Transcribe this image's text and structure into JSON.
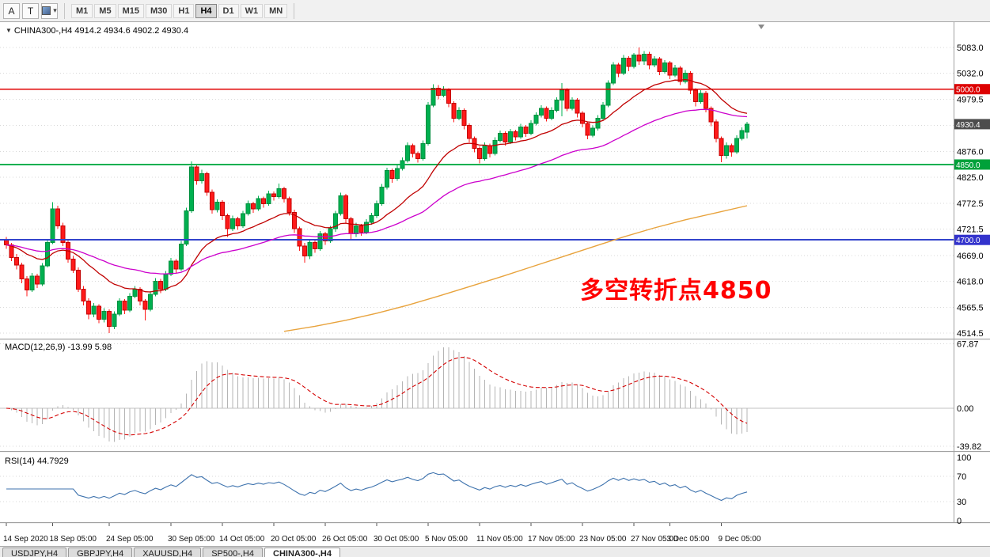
{
  "toolbar": {
    "left_buttons": [
      {
        "id": "annotations-tool",
        "label": "A"
      },
      {
        "id": "text-tool",
        "label": "T"
      }
    ],
    "timeframes": [
      "M1",
      "M5",
      "M15",
      "M30",
      "H1",
      "H4",
      "D1",
      "W1",
      "MN"
    ],
    "active_timeframe": "H4"
  },
  "chart": {
    "title": "CHINA300-,H4 4914.2 4934.6 4902.2 4930.4",
    "annotation_text": "多空转折点4850",
    "annotation_color": "#ff0000"
  },
  "macd_panel": {
    "label": "MACD(12,26,9) -13.99 5.98",
    "scale_labels": [
      {
        "v": 67.87,
        "label": "67.87"
      },
      {
        "v": 0,
        "label": "0.00"
      },
      {
        "v": -39.82,
        "label": "-39.82"
      }
    ]
  },
  "rsi_panel": {
    "label": "RSI(14) 44.7929",
    "scale_labels": [
      {
        "v": 100,
        "label": "100"
      },
      {
        "v": 70,
        "label": "70"
      },
      {
        "v": 30,
        "label": "30"
      },
      {
        "v": 0,
        "label": "0"
      }
    ]
  },
  "bottom_tabs": [
    {
      "label": "USDJPY,H4",
      "active": false
    },
    {
      "label": "GBPJPY,H4",
      "active": false
    },
    {
      "label": "XAUUSD,H4",
      "active": false
    },
    {
      "label": "SP500-,H4",
      "active": false
    },
    {
      "label": "CHINA300-,H4",
      "active": true
    }
  ],
  "chart_data": {
    "type": "candlestick",
    "symbol": "CHINA300-",
    "timeframe": "H4",
    "last_ohlc": {
      "open": 4914.2,
      "high": 4934.6,
      "low": 4902.2,
      "close": 4930.4
    },
    "ylim": [
      4514.5,
      5083.0
    ],
    "colors": {
      "up": "#00b050",
      "up_border": "#008f3e",
      "down": "#ff1a1a",
      "down_border": "#c40000"
    },
    "y_ticks": [
      {
        "price": 5083.0,
        "label": "5083.0"
      },
      {
        "price": 5032.0,
        "label": "5032.0"
      },
      {
        "price": 4979.5,
        "label": "4979.5"
      },
      {
        "price": 4927.8,
        "label": ""
      },
      {
        "price": 4876.0,
        "label": "4876.0"
      },
      {
        "price": 4825.0,
        "label": "4825.0"
      },
      {
        "price": 4772.5,
        "label": "4772.5"
      },
      {
        "price": 4721.5,
        "label": "4721.5"
      },
      {
        "price": 4669.0,
        "label": "4669.0"
      },
      {
        "price": 4618.0,
        "label": "4618.0"
      },
      {
        "price": 4565.5,
        "label": "4565.5"
      },
      {
        "price": 4514.5,
        "label": "4514.5"
      }
    ],
    "price_markers": [
      {
        "price": 5000.0,
        "label": "5000.0",
        "color": "#dd0000"
      },
      {
        "price": 4930.4,
        "label": "4930.4",
        "color": "#4d4d4d"
      },
      {
        "price": 4850.0,
        "label": "4850.0",
        "color": "#00a13a"
      },
      {
        "price": 4700.0,
        "label": "4700.0",
        "color": "#3333cc"
      }
    ],
    "level_lines": [
      {
        "price": 5000.0,
        "color": "#e00000",
        "width": 1.2
      },
      {
        "price": 4850.0,
        "color": "#00b050",
        "width": 2
      },
      {
        "price": 4700.0,
        "color": "#3344cc",
        "width": 2
      }
    ],
    "x_labels": [
      {
        "bar": 0,
        "label": "14 Sep 2020"
      },
      {
        "bar": 9,
        "label": "18 Sep 05:00"
      },
      {
        "bar": 20,
        "label": "24 Sep 05:00"
      },
      {
        "bar": 32,
        "label": "30 Sep 05:00"
      },
      {
        "bar": 42,
        "label": "14 Oct 05:00"
      },
      {
        "bar": 52,
        "label": "20 Oct 05:00"
      },
      {
        "bar": 62,
        "label": "26 Oct 05:00"
      },
      {
        "bar": 72,
        "label": "30 Oct 05:00"
      },
      {
        "bar": 82,
        "label": "5 Nov 05:00"
      },
      {
        "bar": 92,
        "label": "11 Nov 05:00"
      },
      {
        "bar": 102,
        "label": "17 Nov 05:00"
      },
      {
        "bar": 112,
        "label": "23 Nov 05:00"
      },
      {
        "bar": 122,
        "label": "27 Nov 05:00"
      },
      {
        "bar": 129,
        "label": "3 Dec 05:00"
      },
      {
        "bar": 139,
        "label": "9 Dec 05:00"
      }
    ],
    "moving_averages": [
      {
        "name": "ma-fast",
        "method": "ema",
        "period": 21,
        "color": "#c00000"
      },
      {
        "name": "ma-slow",
        "method": "ema",
        "period": 55,
        "color": "#cc00cc"
      }
    ],
    "orange_ma_points": [
      [
        54,
        4518
      ],
      [
        60,
        4528
      ],
      [
        66,
        4540
      ],
      [
        72,
        4554
      ],
      [
        78,
        4570
      ],
      [
        84,
        4588
      ],
      [
        90,
        4607
      ],
      [
        96,
        4626
      ],
      [
        102,
        4646
      ],
      [
        108,
        4666
      ],
      [
        114,
        4686
      ],
      [
        120,
        4706
      ],
      [
        126,
        4724
      ],
      [
        132,
        4740
      ],
      [
        138,
        4754
      ],
      [
        144,
        4768
      ]
    ],
    "orange_ma_color": "#e8a33d",
    "macd": {
      "fast": 12,
      "slow": 26,
      "signal": 9,
      "value": -13.99,
      "signal_value": 5.98,
      "histogram_color": "#b4b4b4",
      "signal_color": "#d40000",
      "ylim": [
        -39.82,
        67.87
      ]
    },
    "rsi": {
      "period": 14,
      "value": 44.7929,
      "color": "#3d72ad",
      "levels": [
        70,
        30
      ],
      "ylim": [
        0,
        100
      ]
    },
    "ohlc": [
      [
        4700,
        4706,
        4682,
        4690
      ],
      [
        4690,
        4694,
        4658,
        4665
      ],
      [
        4665,
        4672,
        4641,
        4650
      ],
      [
        4650,
        4655,
        4614,
        4622
      ],
      [
        4622,
        4628,
        4588,
        4600
      ],
      [
        4600,
        4634,
        4596,
        4628
      ],
      [
        4628,
        4633,
        4604,
        4612
      ],
      [
        4612,
        4654,
        4608,
        4648
      ],
      [
        4648,
        4701,
        4645,
        4695
      ],
      [
        4695,
        4775,
        4692,
        4762
      ],
      [
        4762,
        4768,
        4722,
        4728
      ],
      [
        4728,
        4734,
        4688,
        4695
      ],
      [
        4695,
        4700,
        4655,
        4662
      ],
      [
        4662,
        4668,
        4634,
        4640
      ],
      [
        4640,
        4645,
        4596,
        4602
      ],
      [
        4602,
        4608,
        4570,
        4578
      ],
      [
        4578,
        4584,
        4542,
        4552
      ],
      [
        4552,
        4574,
        4546,
        4568
      ],
      [
        4568,
        4572,
        4534,
        4542
      ],
      [
        4542,
        4564,
        4536,
        4558
      ],
      [
        4558,
        4562,
        4514.5,
        4528
      ],
      [
        4528,
        4558,
        4522,
        4552
      ],
      [
        4552,
        4584,
        4548,
        4578
      ],
      [
        4578,
        4582,
        4552,
        4560
      ],
      [
        4560,
        4594,
        4556,
        4588
      ],
      [
        4588,
        4608,
        4584,
        4602
      ],
      [
        4602,
        4606,
        4570,
        4578
      ],
      [
        4578,
        4582,
        4540,
        4562
      ],
      [
        4562,
        4598,
        4558,
        4592
      ],
      [
        4592,
        4624,
        4588,
        4618
      ],
      [
        4618,
        4622,
        4594,
        4602
      ],
      [
        4602,
        4638,
        4598,
        4632
      ],
      [
        4632,
        4664,
        4628,
        4658
      ],
      [
        4658,
        4662,
        4634,
        4642
      ],
      [
        4642,
        4698,
        4638,
        4692
      ],
      [
        4692,
        4764,
        4688,
        4758
      ],
      [
        4758,
        4856,
        4754,
        4845
      ],
      [
        4845,
        4850,
        4810,
        4818
      ],
      [
        4818,
        4840,
        4812,
        4832
      ],
      [
        4832,
        4836,
        4788,
        4795
      ],
      [
        4795,
        4800,
        4752,
        4760
      ],
      [
        4760,
        4781,
        4755,
        4775
      ],
      [
        4775,
        4779,
        4740,
        4748
      ],
      [
        4748,
        4752,
        4706,
        4722
      ],
      [
        4722,
        4748,
        4718,
        4742
      ],
      [
        4742,
        4746,
        4720,
        4728
      ],
      [
        4728,
        4758,
        4724,
        4752
      ],
      [
        4752,
        4778,
        4748,
        4772
      ],
      [
        4772,
        4776,
        4754,
        4762
      ],
      [
        4762,
        4788,
        4758,
        4782
      ],
      [
        4782,
        4786,
        4764,
        4772
      ],
      [
        4772,
        4798,
        4768,
        4792
      ],
      [
        4792,
        4796,
        4778,
        4786
      ],
      [
        4786,
        4812,
        4782,
        4802
      ],
      [
        4802,
        4806,
        4774,
        4782
      ],
      [
        4782,
        4786,
        4748,
        4755
      ],
      [
        4755,
        4760,
        4714,
        4722
      ],
      [
        4722,
        4726,
        4678,
        4688
      ],
      [
        4688,
        4694,
        4655,
        4668
      ],
      [
        4668,
        4700,
        4662,
        4695
      ],
      [
        4695,
        4700,
        4674,
        4682
      ],
      [
        4682,
        4718,
        4678,
        4712
      ],
      [
        4712,
        4716,
        4690,
        4698
      ],
      [
        4698,
        4728,
        4694,
        4722
      ],
      [
        4722,
        4758,
        4716,
        4752
      ],
      [
        4752,
        4794,
        4748,
        4788
      ],
      [
        4788,
        4792,
        4734,
        4742
      ],
      [
        4742,
        4746,
        4702,
        4712
      ],
      [
        4712,
        4734,
        4706,
        4728
      ],
      [
        4728,
        4732,
        4708,
        4715
      ],
      [
        4715,
        4741,
        4711,
        4735
      ],
      [
        4735,
        4754,
        4730,
        4748
      ],
      [
        4748,
        4778,
        4744,
        4772
      ],
      [
        4772,
        4811,
        4768,
        4805
      ],
      [
        4805,
        4844,
        4800,
        4838
      ],
      [
        4838,
        4842,
        4814,
        4822
      ],
      [
        4822,
        4848,
        4818,
        4842
      ],
      [
        4842,
        4864,
        4838,
        4858
      ],
      [
        4858,
        4894,
        4854,
        4888
      ],
      [
        4888,
        4892,
        4864,
        4872
      ],
      [
        4872,
        4876,
        4854,
        4862
      ],
      [
        4862,
        4898,
        4858,
        4892
      ],
      [
        4892,
        4974,
        4888,
        4968
      ],
      [
        4968,
        5010,
        4964,
        5002
      ],
      [
        5002,
        5008,
        4980,
        4988
      ],
      [
        4988,
        5006,
        4984,
        4998
      ],
      [
        4998,
        5002,
        4964,
        4972
      ],
      [
        4972,
        4976,
        4934,
        4942
      ],
      [
        4942,
        4964,
        4938,
        4958
      ],
      [
        4958,
        4962,
        4920,
        4928
      ],
      [
        4928,
        4932,
        4894,
        4902
      ],
      [
        4902,
        4906,
        4874,
        4882
      ],
      [
        4882,
        4886,
        4852,
        4862
      ],
      [
        4862,
        4894,
        4858,
        4888
      ],
      [
        4888,
        4892,
        4864,
        4872
      ],
      [
        4872,
        4904,
        4868,
        4898
      ],
      [
        4898,
        4918,
        4894,
        4912
      ],
      [
        4912,
        4916,
        4888,
        4895
      ],
      [
        4895,
        4921,
        4891,
        4915
      ],
      [
        4915,
        4919,
        4898,
        4905
      ],
      [
        4905,
        4931,
        4901,
        4925
      ],
      [
        4925,
        4929,
        4905,
        4912
      ],
      [
        4912,
        4938,
        4908,
        4932
      ],
      [
        4932,
        4954,
        4928,
        4948
      ],
      [
        4948,
        4968,
        4944,
        4962
      ],
      [
        4962,
        4966,
        4936,
        4942
      ],
      [
        4942,
        4964,
        4938,
        4958
      ],
      [
        4958,
        4984,
        4954,
        4978
      ],
      [
        4978,
        5012,
        4946,
        4998
      ],
      [
        4998,
        5002,
        4956,
        4962
      ],
      [
        4962,
        4984,
        4958,
        4978
      ],
      [
        4978,
        4982,
        4944,
        4952
      ],
      [
        4952,
        4956,
        4924,
        4932
      ],
      [
        4932,
        4936,
        4900,
        4908
      ],
      [
        4908,
        4928,
        4904,
        4922
      ],
      [
        4922,
        4948,
        4918,
        4942
      ],
      [
        4942,
        4974,
        4938,
        4968
      ],
      [
        4968,
        5018,
        4964,
        5012
      ],
      [
        5012,
        5054,
        5008,
        5048
      ],
      [
        5048,
        5052,
        5024,
        5032
      ],
      [
        5032,
        5068,
        5028,
        5062
      ],
      [
        5062,
        5066,
        5036,
        5045
      ],
      [
        5045,
        5072,
        5041,
        5068
      ],
      [
        5068,
        5083,
        5048,
        5056
      ],
      [
        5056,
        5076,
        5048,
        5070
      ],
      [
        5070,
        5074,
        5040,
        5048
      ],
      [
        5048,
        5066,
        5044,
        5060
      ],
      [
        5060,
        5064,
        5028,
        5035
      ],
      [
        5035,
        5058,
        5031,
        5052
      ],
      [
        5052,
        5056,
        5020,
        5028
      ],
      [
        5028,
        5048,
        5024,
        5042
      ],
      [
        5042,
        5046,
        5008,
        5015
      ],
      [
        5015,
        5038,
        5011,
        5032
      ],
      [
        5032,
        5036,
        4990,
        4998
      ],
      [
        4998,
        5002,
        4966,
        4975
      ],
      [
        4975,
        4998,
        4971,
        4992
      ],
      [
        4992,
        4996,
        4954,
        4962
      ],
      [
        4962,
        4966,
        4926,
        4935
      ],
      [
        4935,
        4940,
        4894,
        4902
      ],
      [
        4902,
        4906,
        4855,
        4868
      ],
      [
        4868,
        4894,
        4862,
        4888
      ],
      [
        4888,
        4892,
        4866,
        4875
      ],
      [
        4875,
        4908,
        4871,
        4902
      ],
      [
        4902,
        4924,
        4898,
        4918
      ],
      [
        4914.2,
        4934.6,
        4902.2,
        4930.4
      ]
    ]
  }
}
